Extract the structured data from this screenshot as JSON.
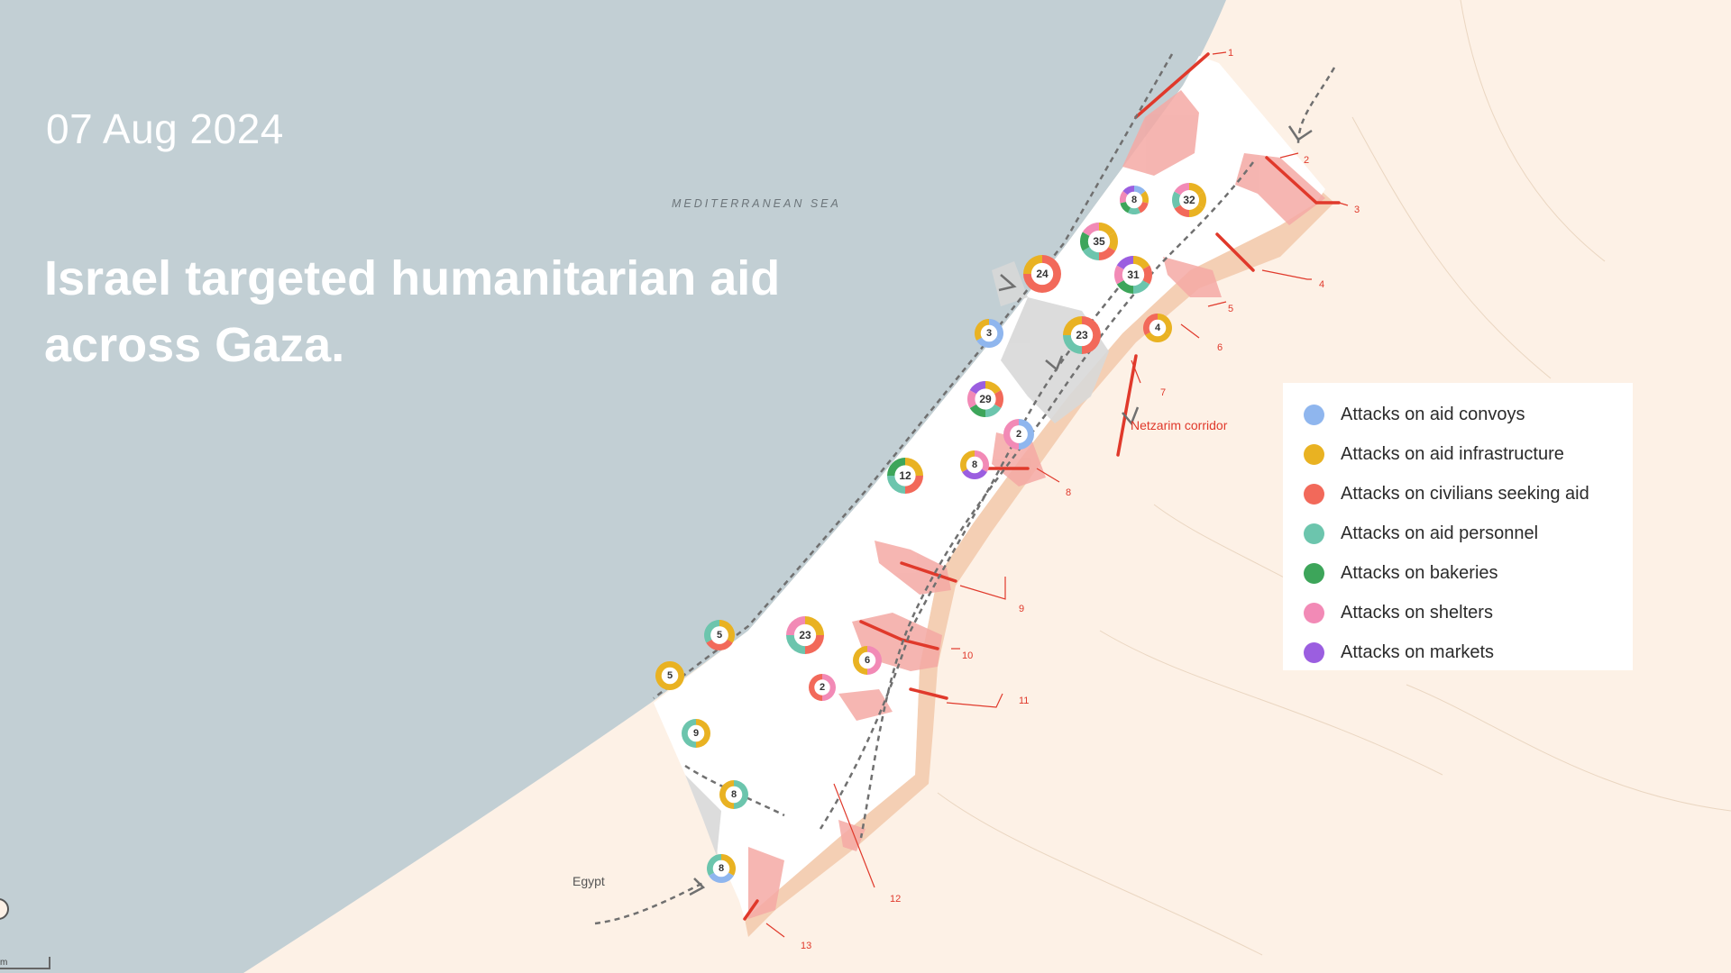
{
  "date": "07 Aug 2024",
  "headline": "Israel targeted humanitarian aid across Gaza.",
  "labels": {
    "sea": "MEDITERRANEAN SEA",
    "egypt": "Egypt",
    "netzarim": "Netzarim corridor"
  },
  "scale_text": "m",
  "colors": {
    "sea": "#c2cfd4",
    "land": "#fdf1e6",
    "strip": "#ffffff",
    "attack_zone": "#f4a9a4",
    "buffer": "#f0c3a3",
    "route": "#e0392b",
    "urban": "#d8d8d8"
  },
  "legend": [
    {
      "label": "Attacks on aid convoys",
      "color": "#8fb6ee"
    },
    {
      "label": "Attacks on aid infrastructure",
      "color": "#e9b222"
    },
    {
      "label": "Attacks on civilians seeking aid",
      "color": "#f2695a"
    },
    {
      "label": "Attacks on aid personnel",
      "color": "#6cc5ad"
    },
    {
      "label": "Attacks on bakeries",
      "color": "#3da55a"
    },
    {
      "label": "Attacks on shelters",
      "color": "#f28ab6"
    },
    {
      "label": "Attacks on markets",
      "color": "#9b5ee0"
    }
  ],
  "clusters": [
    {
      "count": "8",
      "mix": [
        0,
        1,
        2,
        3,
        4,
        5,
        6
      ]
    },
    {
      "count": "32",
      "mix": [
        1,
        1,
        1,
        2,
        3,
        5
      ]
    },
    {
      "count": "35",
      "mix": [
        1,
        1,
        2,
        3,
        4,
        5
      ]
    },
    {
      "count": "24",
      "mix": [
        2,
        2,
        2,
        1
      ]
    },
    {
      "count": "31",
      "mix": [
        1,
        2,
        3,
        4,
        5,
        6
      ]
    },
    {
      "count": "3",
      "mix": [
        0,
        0,
        1
      ]
    },
    {
      "count": "23",
      "mix": [
        2,
        2,
        3,
        1
      ]
    },
    {
      "count": "4",
      "mix": [
        1,
        1,
        2
      ]
    },
    {
      "count": "29",
      "mix": [
        1,
        2,
        3,
        4,
        5,
        6
      ]
    },
    {
      "count": "2",
      "mix": [
        0,
        5
      ]
    },
    {
      "count": "8",
      "mix": [
        5,
        6,
        1
      ]
    },
    {
      "count": "12",
      "mix": [
        1,
        2,
        3,
        4
      ]
    },
    {
      "count": "5",
      "mix": [
        1,
        2,
        3
      ]
    },
    {
      "count": "23",
      "mix": [
        1,
        2,
        3,
        5
      ]
    },
    {
      "count": "6",
      "mix": [
        5,
        1
      ]
    },
    {
      "count": "2",
      "mix": [
        5,
        2
      ]
    },
    {
      "count": "5",
      "mix": [
        1
      ]
    },
    {
      "count": "9",
      "mix": [
        1,
        3
      ]
    },
    {
      "count": "8",
      "mix": [
        3,
        1
      ]
    },
    {
      "count": "8",
      "mix": [
        1,
        0,
        3
      ]
    }
  ],
  "incidents": [
    "1",
    "2",
    "3",
    "4",
    "5",
    "6",
    "7",
    "8",
    "9",
    "10",
    "11",
    "12",
    "13"
  ]
}
